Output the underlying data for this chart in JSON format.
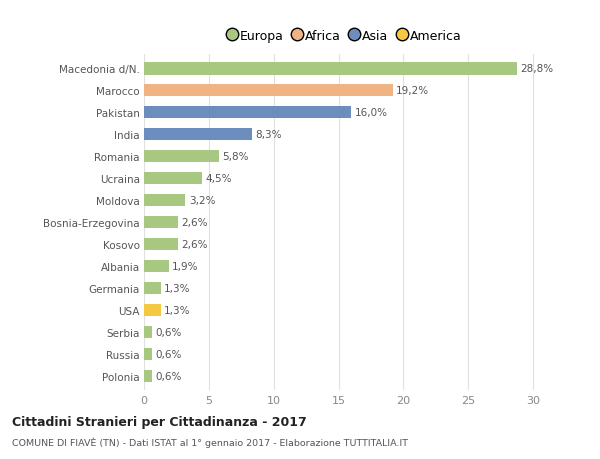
{
  "categories": [
    "Macedonia d/N.",
    "Marocco",
    "Pakistan",
    "India",
    "Romania",
    "Ucraina",
    "Moldova",
    "Bosnia-Erzegovina",
    "Kosovo",
    "Albania",
    "Germania",
    "USA",
    "Serbia",
    "Russia",
    "Polonia"
  ],
  "values": [
    28.8,
    19.2,
    16.0,
    8.3,
    5.8,
    4.5,
    3.2,
    2.6,
    2.6,
    1.9,
    1.3,
    1.3,
    0.6,
    0.6,
    0.6
  ],
  "labels": [
    "28,8%",
    "19,2%",
    "16,0%",
    "8,3%",
    "5,8%",
    "4,5%",
    "3,2%",
    "2,6%",
    "2,6%",
    "1,9%",
    "1,3%",
    "1,3%",
    "0,6%",
    "0,6%",
    "0,6%"
  ],
  "colors": [
    "#a8c882",
    "#f0b482",
    "#6c8ebf",
    "#6c8ebf",
    "#a8c882",
    "#a8c882",
    "#a8c882",
    "#a8c882",
    "#a8c882",
    "#a8c882",
    "#a8c882",
    "#f5c842",
    "#a8c882",
    "#a8c882",
    "#a8c882"
  ],
  "legend_labels": [
    "Europa",
    "Africa",
    "Asia",
    "America"
  ],
  "legend_colors": [
    "#a8c882",
    "#f0b482",
    "#6c8ebf",
    "#f5c842"
  ],
  "title": "Cittadini Stranieri per Cittadinanza - 2017",
  "subtitle": "COMUNE DI FIAVÈ (TN) - Dati ISTAT al 1° gennaio 2017 - Elaborazione TUTTITALIA.IT",
  "xlim": [
    0,
    31
  ],
  "xticks": [
    0,
    5,
    10,
    15,
    20,
    25,
    30
  ],
  "bg_color": "#ffffff",
  "grid_color": "#e0e0e0",
  "bar_height": 0.55
}
